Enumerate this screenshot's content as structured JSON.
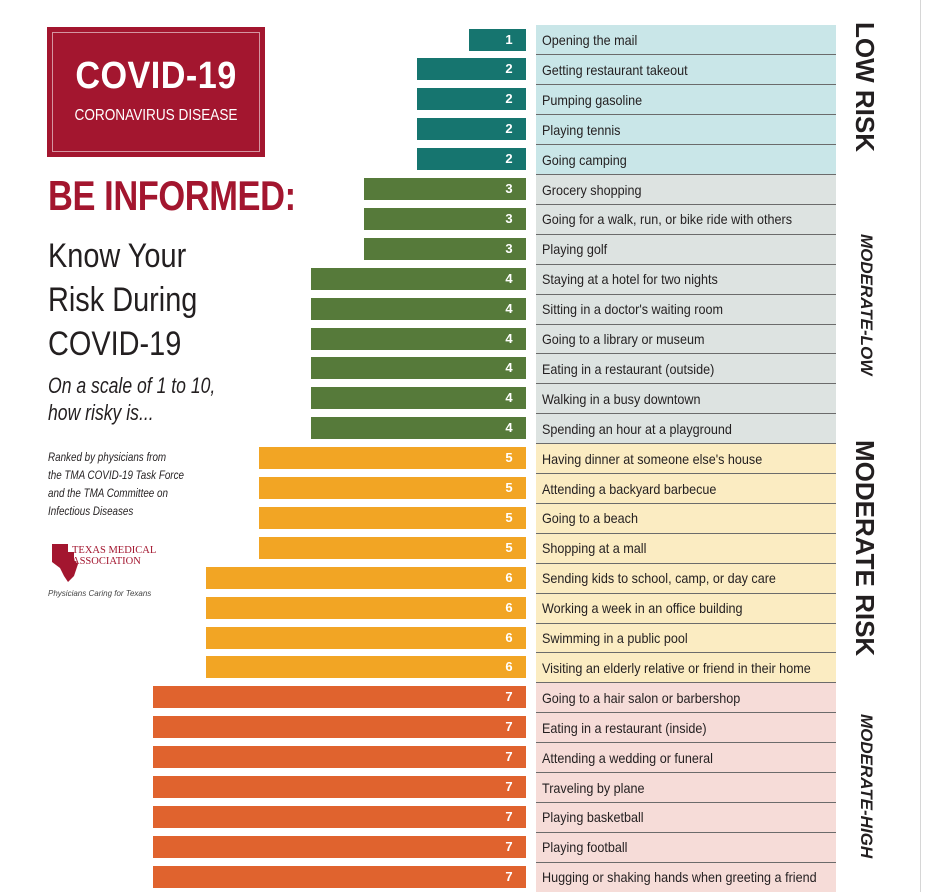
{
  "badge": {
    "title": "COVID-19",
    "subtitle": "CORONAVIRUS DISEASE"
  },
  "header": {
    "be_informed": "BE INFORMED:",
    "headline_lines": [
      "Know Your",
      "Risk During",
      "COVID-19"
    ],
    "question_lines": [
      "On a scale of 1 to 10,",
      "how risky is..."
    ],
    "ranked_lines": [
      "Ranked by physicians from",
      "the TMA COVID-19 Task Force",
      "and the TMA Committee on",
      "Infectious Diseases"
    ]
  },
  "logo": {
    "name_lines": [
      "TEXAS MEDICAL",
      "ASSOCIATION"
    ],
    "tagline": "Physicians Caring for Texans"
  },
  "risk_levels": [
    {
      "label": "LOW RISK",
      "color": "#c9e6e8"
    },
    {
      "label": "MODERATE-LOW",
      "color": "#dde3e1"
    },
    {
      "label": "MODERATE RISK",
      "color": "#fbecc2"
    },
    {
      "label": "MODERATE-HIGH",
      "color": "#f6dcd8"
    }
  ],
  "colors": {
    "brand_red": "#a3162f",
    "score_1": "#16756f",
    "score_2": "#16756f",
    "score_3": "#567a3a",
    "score_4": "#567a3a",
    "score_5": "#f2a524",
    "score_6": "#f2a524",
    "score_7": "#e0632e"
  },
  "chart_data": {
    "type": "bar",
    "orientation": "horizontal",
    "title": "",
    "xlim": [
      0,
      10
    ],
    "categories": [
      "Opening the mail",
      "Getting restaurant takeout",
      "Pumping gasoline",
      "Playing tennis",
      "Going camping",
      "Grocery shopping",
      "Going for a walk, run, or bike ride with others",
      "Playing golf",
      "Staying at a hotel for two nights",
      "Sitting in a doctor's waiting room",
      "Going to a library or museum",
      "Eating in a restaurant (outside)",
      "Walking in a busy downtown",
      "Spending an hour at a playground",
      "Having dinner at someone else's house",
      "Attending a backyard barbecue",
      "Going to a beach",
      "Shopping at a mall",
      "Sending kids to school, camp, or day care",
      "Working a week in an office building",
      "Swimming in a public pool",
      "Visiting an elderly relative or friend in their home",
      "Going to a hair salon or barbershop",
      "Eating in a restaurant (inside)",
      "Attending a wedding or funeral",
      "Traveling by plane",
      "Playing basketball",
      "Playing football",
      "Hugging or shaking hands when greeting a friend"
    ],
    "values": [
      1,
      2,
      2,
      2,
      2,
      3,
      3,
      3,
      4,
      4,
      4,
      4,
      4,
      4,
      5,
      5,
      5,
      5,
      6,
      6,
      6,
      6,
      7,
      7,
      7,
      7,
      7,
      7,
      7
    ],
    "risk_groups": [
      {
        "label": "LOW RISK",
        "from": 1,
        "to": 2
      },
      {
        "label": "MODERATE-LOW",
        "from": 3,
        "to": 4
      },
      {
        "label": "MODERATE RISK",
        "from": 5,
        "to": 6
      },
      {
        "label": "MODERATE-HIGH",
        "from": 7,
        "to": 7
      }
    ]
  }
}
